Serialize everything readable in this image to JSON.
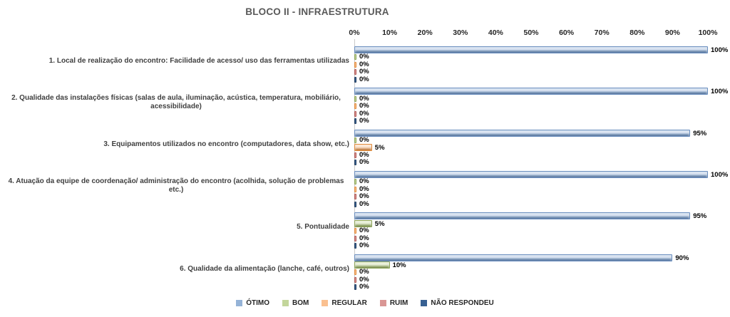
{
  "chart_data": {
    "type": "bar",
    "orientation": "horizontal",
    "title": "BLOCO II - INFRAESTRUTURA",
    "title_color": "#595959",
    "categories": [
      "1. Local de realização do encontro: Facilidade de acesso/ uso das ferramentas utilizadas",
      "2. Qualidade das instalações físicas (salas de aula, iluminação, acústica, temperatura, mobiliário, acessibilidade)",
      "3. Equipamentos utilizados no encontro (computadores, data show, etc.)",
      "4. Atuação da equipe de coordenação/ administração do encontro (acolhida, solução de problemas etc.)",
      "5. Pontualidade",
      "6. Qualidade da alimentação (lanche, café, outros)"
    ],
    "series": [
      {
        "key": "otimo",
        "name": "ÓTIMO",
        "color": "#95B3D7",
        "border": "#6A8EBF",
        "gradient_light": "#CEDCF0",
        "values": [
          100,
          100,
          95,
          100,
          95,
          90
        ]
      },
      {
        "key": "bom",
        "name": "BOM",
        "color": "#C3D69B",
        "border": "#8DA55A",
        "gradient_light": "#E3EDCF",
        "values": [
          0,
          0,
          0,
          0,
          5,
          10
        ]
      },
      {
        "key": "regular",
        "name": "REGULAR",
        "color": "#FAC090",
        "border": "#E08B3C",
        "gradient_light": "#FDE0C5",
        "values": [
          0,
          0,
          5,
          0,
          0,
          0
        ]
      },
      {
        "key": "ruim",
        "name": "RUIM",
        "color": "#D99694",
        "border": "#B05A57",
        "gradient_light": "#EDC7C6",
        "values": [
          0,
          0,
          0,
          0,
          0,
          0
        ]
      },
      {
        "key": "nao-respondeu",
        "name": "NÃO RESPONDEU",
        "color": "#376092",
        "border": "#254061",
        "gradient_light": "#6D92BE",
        "values": [
          0,
          0,
          0,
          0,
          0,
          0
        ]
      }
    ],
    "x_ticks": [
      "0%",
      "10%",
      "20%",
      "30%",
      "40%",
      "50%",
      "60%",
      "70%",
      "80%",
      "90%",
      "100%"
    ],
    "xlim": [
      0,
      100
    ],
    "value_label_suffix": "%",
    "gridlines": false,
    "legend_position": "bottom"
  }
}
